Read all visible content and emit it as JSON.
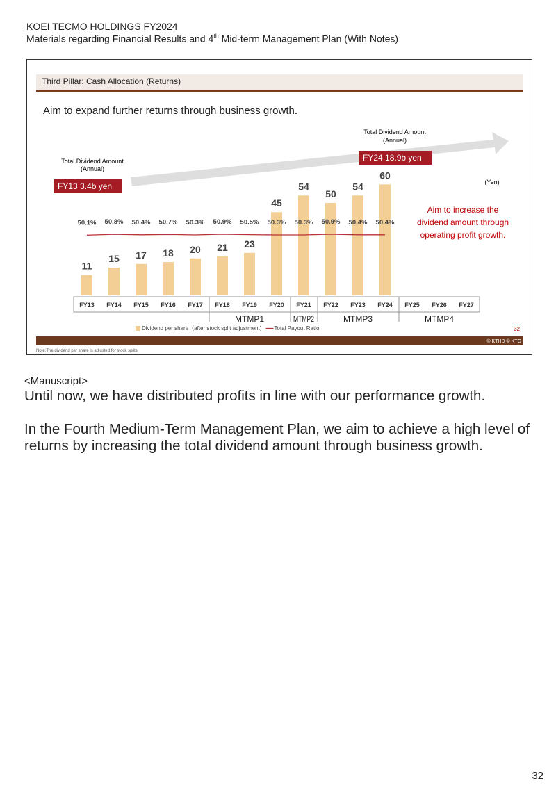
{
  "header": {
    "company": "KOEI TECMO HOLDINGS FY2024",
    "subtitle_start": "Materials regarding Financial Results and 4",
    "subtitle_sup": "th",
    "subtitle_end": " Mid-term Management Plan (With Notes)"
  },
  "slide": {
    "section": "Third Pillar: Cash Allocation (Returns)",
    "headline": "Aim to expand further returns through business growth.",
    "left_caption": [
      "Total Dividend Amount",
      "(Annual)"
    ],
    "left_badge": "FY13 3.4b yen",
    "right_caption": [
      "Total Dividend Amount",
      "(Annual)"
    ],
    "right_badge": "FY24 18.9b yen",
    "unit": "(Yen)",
    "aim": [
      "Aim to increase the",
      "dividend amount through",
      "operating profit growth."
    ],
    "page": "32",
    "copyright": "© KTHD © KTG",
    "note": "Note:The dividend per share is adjusted for stock splits"
  },
  "chart_data": {
    "type": "bar-line",
    "categories": [
      "FY13",
      "FY14",
      "FY15",
      "FY16",
      "FY17",
      "FY18",
      "FY19",
      "FY20",
      "FY21",
      "FY22",
      "FY23",
      "FY24",
      "FY25",
      "FY26",
      "FY27"
    ],
    "groups": [
      "MTMP1",
      "MTMP2",
      "MTMP3",
      "MTMP4"
    ],
    "series": [
      {
        "name": "Dividend per share（after stock split adjustment)",
        "type": "bar",
        "color": "#f3cf96",
        "values": [
          11,
          15,
          17,
          18,
          20,
          21,
          23,
          45,
          54,
          50,
          54,
          60,
          null,
          null,
          null
        ]
      },
      {
        "name": "Total Payout Ratio",
        "type": "line",
        "axis": "y2",
        "color": "#b8323a",
        "values": [
          50.1,
          50.8,
          50.4,
          50.7,
          50.3,
          50.9,
          50.5,
          50.3,
          50.3,
          50.9,
          50.4,
          50.4,
          null,
          null,
          null
        ],
        "value_labels": [
          "50.1%",
          "50.8%",
          "50.4%",
          "50.7%",
          "50.3%",
          "50.9%",
          "50.5%",
          "50.3%",
          "50.3%",
          "50.9%",
          "50.4%",
          "50.4%",
          null,
          null,
          null
        ]
      }
    ],
    "ylim": [
      0,
      65
    ],
    "y2lim": [
      0,
      100
    ]
  },
  "manuscript": {
    "label": "<Manuscript>",
    "paragraphs": [
      "Until now, we have distributed profits in line with our performance growth.",
      "In the Fourth Medium-Term Management Plan, we aim to achieve a high level of returns by increasing the total dividend amount through business growth."
    ]
  },
  "page_number": "32"
}
